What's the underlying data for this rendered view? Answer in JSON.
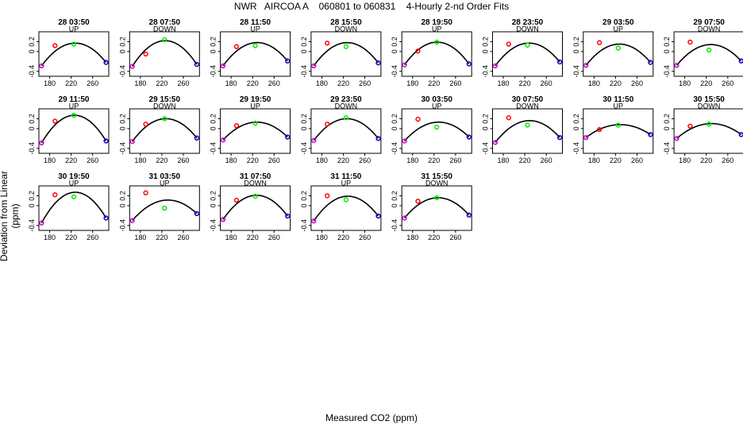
{
  "figure": {
    "title": "NWR   AIRCOA A    060801 to 060831    4-Hourly 2-nd Order Fits",
    "xlabel": "Measured CO2 (ppm)",
    "ylabel": "Deviation from Linear (ppm)",
    "colors": {
      "curve": "#000000",
      "low": "#cc00cc",
      "mid1": "#ff0000",
      "mid2": "#00ee00",
      "high": "#0000cc"
    }
  },
  "chart_data": {
    "type": "scatter",
    "xlim": [
      160,
      290
    ],
    "ylim": [
      -0.5,
      0.4
    ],
    "xticks": [
      180,
      220,
      260
    ],
    "xtick_labels": [
      "180",
      "220",
      "260"
    ],
    "yticks": [
      -0.4,
      0,
      0.2
    ],
    "ytick_labels": [
      "-0.4",
      "0",
      "0.2"
    ],
    "standard_x": [
      165,
      190,
      225,
      285
    ],
    "panels": [
      {
        "title": "28 03:50",
        "direction": "UP",
        "points": [
          -0.29,
          0.12,
          0.15,
          -0.22
        ],
        "fit": [
          -0.29,
          0.05,
          0.17,
          -0.22
        ]
      },
      {
        "title": "28 07:50",
        "direction": "DOWN",
        "points": [
          -0.3,
          -0.05,
          0.24,
          -0.26
        ],
        "fit": [
          -0.3,
          0.08,
          0.22,
          -0.26
        ]
      },
      {
        "title": "28 11:50",
        "direction": "UP",
        "points": [
          -0.29,
          0.1,
          0.12,
          -0.19
        ],
        "fit": [
          -0.29,
          0.05,
          0.18,
          -0.19
        ]
      },
      {
        "title": "28 15:50",
        "direction": "DOWN",
        "points": [
          -0.29,
          0.17,
          0.1,
          -0.23
        ],
        "fit": [
          -0.29,
          0.05,
          0.18,
          -0.23
        ]
      },
      {
        "title": "28 19:50",
        "direction": "UP",
        "points": [
          -0.27,
          0.01,
          0.19,
          -0.25
        ],
        "fit": [
          -0.27,
          0.07,
          0.19,
          -0.25
        ]
      },
      {
        "title": "28 23:50",
        "direction": "DOWN",
        "points": [
          -0.29,
          0.15,
          0.13,
          -0.21
        ],
        "fit": [
          -0.29,
          0.05,
          0.17,
          -0.21
        ]
      },
      {
        "title": "29 03:50",
        "direction": "UP",
        "points": [
          -0.28,
          0.18,
          0.07,
          -0.22
        ],
        "fit": [
          -0.28,
          0.04,
          0.15,
          -0.22
        ]
      },
      {
        "title": "29 07:50",
        "direction": "DOWN",
        "points": [
          -0.28,
          0.19,
          0.03,
          -0.19
        ],
        "fit": [
          -0.28,
          0.04,
          0.14,
          -0.19
        ]
      },
      {
        "title": "29 11:50",
        "direction": "UP",
        "points": [
          -0.29,
          0.15,
          0.27,
          -0.25
        ],
        "fit": [
          -0.29,
          0.11,
          0.27,
          -0.25
        ]
      },
      {
        "title": "29 15:50",
        "direction": "DOWN",
        "points": [
          -0.26,
          0.09,
          0.2,
          -0.19
        ],
        "fit": [
          -0.26,
          0.07,
          0.2,
          -0.19
        ]
      },
      {
        "title": "29 19:50",
        "direction": "UP",
        "points": [
          -0.23,
          0.06,
          0.11,
          -0.17
        ],
        "fit": [
          -0.23,
          0.04,
          0.13,
          -0.17
        ]
      },
      {
        "title": "29 23:50",
        "direction": "DOWN",
        "points": [
          -0.24,
          0.09,
          0.22,
          -0.2
        ],
        "fit": [
          -0.24,
          0.08,
          0.2,
          -0.2
        ]
      },
      {
        "title": "30 03:50",
        "direction": "UP",
        "points": [
          -0.25,
          0.19,
          0.03,
          -0.17
        ],
        "fit": [
          -0.25,
          0.04,
          0.13,
          -0.17
        ]
      },
      {
        "title": "30 07:50",
        "direction": "DOWN",
        "points": [
          -0.28,
          0.22,
          0.07,
          -0.18
        ],
        "fit": [
          -0.28,
          0.05,
          0.16,
          -0.18
        ]
      },
      {
        "title": "30 11:50",
        "direction": "UP",
        "points": [
          -0.18,
          -0.02,
          0.07,
          -0.12
        ],
        "fit": [
          -0.18,
          0.01,
          0.08,
          -0.12
        ]
      },
      {
        "title": "30 15:50",
        "direction": "DOWN",
        "points": [
          -0.2,
          0.05,
          0.09,
          -0.12
        ],
        "fit": [
          -0.2,
          0.02,
          0.1,
          -0.12
        ]
      },
      {
        "title": "30 19:50",
        "direction": "UP",
        "points": [
          -0.35,
          0.22,
          0.18,
          -0.25
        ],
        "fit": [
          -0.35,
          0.08,
          0.27,
          -0.25
        ]
      },
      {
        "title": "31 03:50",
        "direction": "UP",
        "points": [
          -0.3,
          0.26,
          -0.05,
          -0.16
        ],
        "fit": [
          -0.3,
          -0.03,
          0.11,
          -0.16
        ]
      },
      {
        "title": "31 07:50",
        "direction": "DOWN",
        "points": [
          -0.28,
          0.11,
          0.19,
          -0.21
        ],
        "fit": [
          -0.28,
          0.05,
          0.21,
          -0.21
        ]
      },
      {
        "title": "31 11:50",
        "direction": "UP",
        "points": [
          -0.31,
          0.2,
          0.12,
          -0.21
        ],
        "fit": [
          -0.31,
          0.06,
          0.19,
          -0.21
        ]
      },
      {
        "title": "31 15:50",
        "direction": "DOWN",
        "points": [
          -0.25,
          0.09,
          0.16,
          -0.19
        ],
        "fit": [
          -0.25,
          0.05,
          0.16,
          -0.19
        ]
      }
    ]
  }
}
